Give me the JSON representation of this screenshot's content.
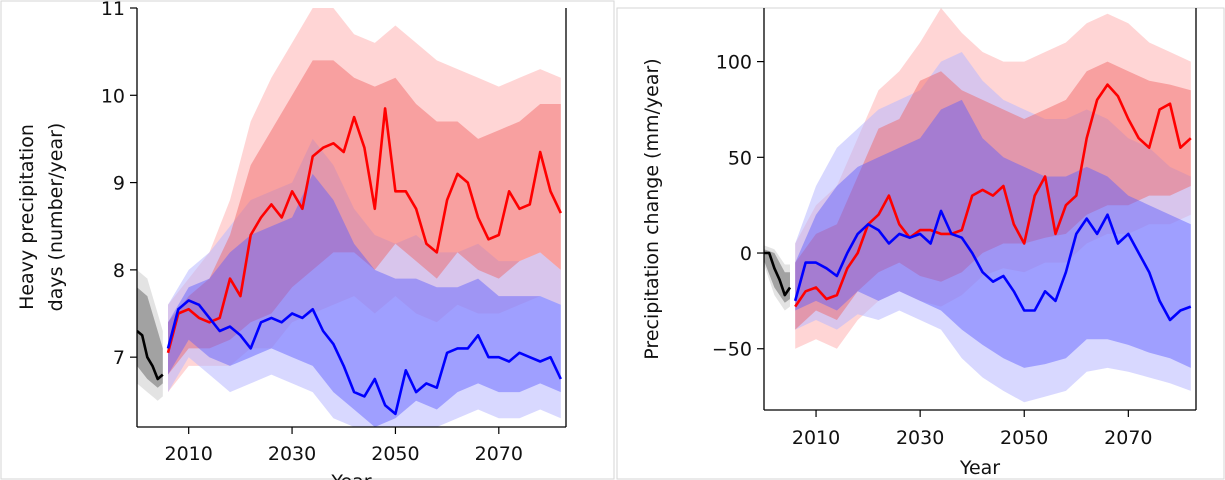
{
  "chart_data": [
    {
      "type": "line",
      "title": "",
      "xlabel": "Year",
      "ylabel": "Heavy precipitation days (number/year)",
      "ylabel_lines": [
        "Heavy precipitation",
        "days (number/year)"
      ],
      "xlim": [
        2000,
        2083
      ],
      "ylim": [
        6.2,
        11.0
      ],
      "xticks": [
        2010,
        2030,
        2050,
        2070
      ],
      "yticks": [
        7,
        8,
        9,
        10,
        11
      ],
      "ytick_labels": [
        "7",
        "8",
        "9",
        "10",
        "11"
      ],
      "grid": false,
      "legend": "none",
      "series": [
        {
          "color": "#000000",
          "x": [
            2000,
            2001,
            2002,
            2003,
            2004,
            2005
          ],
          "values": [
            7.3,
            7.25,
            7.0,
            6.9,
            6.75,
            6.8
          ],
          "band_inner": {
            "x": [
              2000,
              2002,
              2004,
              2005
            ],
            "lower": [
              6.9,
              6.75,
              6.65,
              6.7
            ],
            "upper": [
              7.8,
              7.7,
              7.3,
              7.1
            ]
          },
          "band_outer": {
            "x": [
              2000,
              2002,
              2004,
              2005
            ],
            "lower": [
              6.7,
              6.6,
              6.5,
              6.55
            ],
            "upper": [
              8.0,
              7.9,
              7.5,
              7.3
            ]
          }
        },
        {
          "color": "#ff0000",
          "x": [
            2006,
            2008,
            2010,
            2012,
            2014,
            2016,
            2018,
            2020,
            2022,
            2024,
            2026,
            2028,
            2030,
            2032,
            2034,
            2036,
            2038,
            2040,
            2042,
            2044,
            2046,
            2048,
            2050,
            2052,
            2054,
            2056,
            2058,
            2060,
            2062,
            2064,
            2066,
            2068,
            2070,
            2072,
            2074,
            2076,
            2078,
            2080,
            2082
          ],
          "values": [
            7.05,
            7.5,
            7.55,
            7.45,
            7.4,
            7.45,
            7.9,
            7.7,
            8.4,
            8.6,
            8.75,
            8.6,
            8.9,
            8.7,
            9.3,
            9.4,
            9.45,
            9.35,
            9.75,
            9.4,
            8.7,
            9.85,
            8.9,
            8.9,
            8.7,
            8.3,
            8.2,
            8.8,
            9.1,
            9.0,
            8.6,
            8.35,
            8.4,
            8.9,
            8.7,
            8.75,
            9.35,
            8.9,
            8.65
          ],
          "band_inner": {
            "x": [
              2006,
              2010,
              2014,
              2018,
              2022,
              2026,
              2030,
              2034,
              2038,
              2042,
              2046,
              2050,
              2054,
              2058,
              2062,
              2066,
              2070,
              2074,
              2078,
              2082
            ],
            "lower": [
              6.8,
              7.1,
              7.1,
              7.2,
              7.4,
              7.5,
              7.8,
              8.0,
              8.2,
              8.2,
              8.0,
              8.3,
              8.1,
              7.9,
              8.2,
              8.0,
              7.9,
              8.1,
              8.2,
              8.0
            ],
            "upper": [
              7.4,
              7.7,
              7.9,
              8.4,
              9.2,
              9.6,
              10.0,
              10.4,
              10.4,
              10.2,
              10.1,
              10.2,
              9.9,
              9.7,
              9.7,
              9.5,
              9.6,
              9.7,
              9.9,
              9.9
            ]
          },
          "band_outer": {
            "x": [
              2006,
              2010,
              2014,
              2018,
              2022,
              2026,
              2030,
              2034,
              2038,
              2042,
              2046,
              2050,
              2054,
              2058,
              2062,
              2066,
              2070,
              2074,
              2078,
              2082
            ],
            "lower": [
              6.6,
              6.9,
              6.9,
              6.9,
              7.1,
              7.1,
              7.4,
              7.5,
              7.6,
              7.7,
              7.5,
              7.7,
              7.5,
              7.4,
              7.6,
              7.5,
              7.5,
              7.6,
              7.7,
              7.6
            ],
            "upper": [
              7.6,
              7.9,
              8.2,
              8.8,
              9.7,
              10.2,
              10.6,
              11.0,
              11.0,
              10.7,
              10.6,
              10.8,
              10.6,
              10.4,
              10.3,
              10.2,
              10.1,
              10.2,
              10.3,
              10.2
            ]
          }
        },
        {
          "color": "#0000ff",
          "x": [
            2006,
            2008,
            2010,
            2012,
            2014,
            2016,
            2018,
            2020,
            2022,
            2024,
            2026,
            2028,
            2030,
            2032,
            2034,
            2036,
            2038,
            2040,
            2042,
            2044,
            2046,
            2048,
            2050,
            2052,
            2054,
            2056,
            2058,
            2060,
            2062,
            2064,
            2066,
            2068,
            2070,
            2072,
            2074,
            2076,
            2078,
            2080,
            2082
          ],
          "values": [
            7.1,
            7.55,
            7.65,
            7.6,
            7.45,
            7.3,
            7.35,
            7.25,
            7.1,
            7.4,
            7.45,
            7.4,
            7.5,
            7.45,
            7.55,
            7.3,
            7.15,
            6.9,
            6.6,
            6.55,
            6.75,
            6.45,
            6.35,
            6.85,
            6.6,
            6.7,
            6.65,
            7.05,
            7.1,
            7.1,
            7.25,
            7.0,
            7.0,
            6.95,
            7.05,
            7.0,
            6.95,
            7.0,
            6.75
          ],
          "band_inner": {
            "x": [
              2006,
              2010,
              2014,
              2018,
              2022,
              2026,
              2030,
              2034,
              2038,
              2042,
              2046,
              2050,
              2054,
              2058,
              2062,
              2066,
              2070,
              2074,
              2078,
              2082
            ],
            "lower": [
              6.8,
              7.2,
              7.0,
              6.9,
              7.0,
              7.1,
              7.0,
              6.9,
              6.6,
              6.4,
              6.2,
              6.3,
              6.5,
              6.4,
              6.6,
              6.7,
              6.6,
              6.6,
              6.7,
              6.6
            ],
            "upper": [
              7.4,
              7.8,
              7.9,
              8.2,
              8.4,
              8.5,
              8.6,
              9.1,
              8.8,
              8.3,
              8.0,
              7.9,
              7.9,
              7.8,
              7.8,
              7.9,
              7.7,
              7.7,
              7.7,
              7.6
            ]
          },
          "band_outer": {
            "x": [
              2006,
              2010,
              2014,
              2018,
              2022,
              2026,
              2030,
              2034,
              2038,
              2042,
              2046,
              2050,
              2054,
              2058,
              2062,
              2066,
              2070,
              2074,
              2078,
              2082
            ],
            "lower": [
              6.6,
              7.0,
              6.8,
              6.6,
              6.7,
              6.8,
              6.7,
              6.6,
              6.3,
              6.2,
              6.2,
              6.2,
              6.2,
              6.2,
              6.3,
              6.4,
              6.3,
              6.3,
              6.4,
              6.3
            ],
            "upper": [
              7.6,
              8.0,
              8.2,
              8.5,
              8.8,
              8.9,
              9.0,
              9.5,
              9.2,
              8.7,
              8.4,
              8.3,
              8.4,
              8.2,
              8.2,
              8.3,
              8.1,
              8.1,
              8.2,
              8.0
            ]
          }
        }
      ]
    },
    {
      "type": "line",
      "title": "",
      "xlabel": "Year",
      "ylabel": "Precipitation change (mm/year)",
      "xlim": [
        2000,
        2083
      ],
      "ylim": [
        -82,
        128
      ],
      "xticks": [
        2010,
        2030,
        2050,
        2070
      ],
      "yticks": [
        -50,
        0,
        50,
        100
      ],
      "ytick_labels": [
        "−50",
        "0",
        "50",
        "100"
      ],
      "grid": false,
      "legend": "none",
      "series": [
        {
          "color": "#000000",
          "x": [
            2000,
            2001,
            2002,
            2003,
            2004,
            2005
          ],
          "values": [
            0,
            0,
            -8,
            -14,
            -22,
            -18
          ],
          "band_inner": {
            "x": [
              2000,
              2002,
              2004,
              2005
            ],
            "lower": [
              -4,
              -18,
              -26,
              -24
            ],
            "upper": [
              2,
              0,
              -10,
              -10
            ]
          },
          "band_outer": {
            "x": [
              2000,
              2002,
              2004,
              2005
            ],
            "lower": [
              -6,
              -22,
              -30,
              -28
            ],
            "upper": [
              4,
              2,
              -6,
              -6
            ]
          }
        },
        {
          "color": "#ff0000",
          "x": [
            2006,
            2008,
            2010,
            2012,
            2014,
            2016,
            2018,
            2020,
            2022,
            2024,
            2026,
            2028,
            2030,
            2032,
            2034,
            2036,
            2038,
            2040,
            2042,
            2044,
            2046,
            2048,
            2050,
            2052,
            2054,
            2056,
            2058,
            2060,
            2062,
            2064,
            2066,
            2068,
            2070,
            2072,
            2074,
            2076,
            2078,
            2080,
            2082
          ],
          "values": [
            -28,
            -20,
            -18,
            -24,
            -22,
            -8,
            0,
            15,
            20,
            30,
            15,
            8,
            12,
            12,
            10,
            10,
            12,
            30,
            33,
            30,
            35,
            15,
            5,
            30,
            40,
            10,
            25,
            30,
            60,
            80,
            88,
            82,
            70,
            60,
            55,
            75,
            78,
            55,
            60
          ],
          "band_inner": {
            "x": [
              2006,
              2010,
              2014,
              2018,
              2022,
              2026,
              2030,
              2034,
              2038,
              2042,
              2046,
              2050,
              2054,
              2058,
              2062,
              2066,
              2070,
              2074,
              2078,
              2082
            ],
            "lower": [
              -40,
              -30,
              -35,
              -20,
              -10,
              -5,
              -12,
              -15,
              -10,
              0,
              5,
              5,
              8,
              10,
              20,
              25,
              25,
              30,
              30,
              35
            ],
            "upper": [
              -5,
              10,
              15,
              40,
              65,
              70,
              90,
              95,
              85,
              80,
              75,
              70,
              75,
              80,
              95,
              100,
              95,
              90,
              88,
              85
            ]
          },
          "band_outer": {
            "x": [
              2006,
              2010,
              2014,
              2018,
              2022,
              2026,
              2030,
              2034,
              2038,
              2042,
              2046,
              2050,
              2054,
              2058,
              2062,
              2066,
              2070,
              2074,
              2078,
              2082
            ],
            "lower": [
              -50,
              -45,
              -50,
              -35,
              -25,
              -20,
              -25,
              -28,
              -22,
              -12,
              -8,
              -10,
              -5,
              -5,
              5,
              10,
              10,
              15,
              15,
              20
            ],
            "upper": [
              5,
              25,
              35,
              60,
              85,
              95,
              110,
              128,
              115,
              105,
              100,
              100,
              105,
              110,
              120,
              125,
              120,
              110,
              105,
              100
            ]
          }
        },
        {
          "color": "#0000ff",
          "x": [
            2006,
            2008,
            2010,
            2012,
            2014,
            2016,
            2018,
            2020,
            2022,
            2024,
            2026,
            2028,
            2030,
            2032,
            2034,
            2036,
            2038,
            2040,
            2042,
            2044,
            2046,
            2048,
            2050,
            2052,
            2054,
            2056,
            2058,
            2060,
            2062,
            2064,
            2066,
            2068,
            2070,
            2072,
            2074,
            2076,
            2078,
            2080,
            2082
          ],
          "values": [
            -25,
            -5,
            -5,
            -8,
            -12,
            0,
            10,
            15,
            12,
            5,
            10,
            8,
            10,
            5,
            22,
            10,
            8,
            0,
            -10,
            -15,
            -12,
            -20,
            -30,
            -30,
            -20,
            -25,
            -10,
            10,
            18,
            10,
            20,
            5,
            10,
            0,
            -10,
            -25,
            -35,
            -30,
            -28
          ],
          "band_inner": {
            "x": [
              2006,
              2010,
              2014,
              2018,
              2022,
              2026,
              2030,
              2034,
              2038,
              2042,
              2046,
              2050,
              2054,
              2058,
              2062,
              2066,
              2070,
              2074,
              2078,
              2082
            ],
            "lower": [
              -30,
              -25,
              -30,
              -20,
              -25,
              -20,
              -25,
              -30,
              -40,
              -48,
              -55,
              -60,
              -58,
              -55,
              -45,
              -45,
              -48,
              -52,
              -55,
              -60
            ],
            "upper": [
              -5,
              20,
              35,
              45,
              50,
              55,
              60,
              75,
              80,
              60,
              50,
              45,
              40,
              40,
              45,
              40,
              30,
              25,
              20,
              15
            ]
          },
          "band_outer": {
            "x": [
              2006,
              2010,
              2014,
              2018,
              2022,
              2026,
              2030,
              2034,
              2038,
              2042,
              2046,
              2050,
              2054,
              2058,
              2062,
              2066,
              2070,
              2074,
              2078,
              2082
            ],
            "lower": [
              -40,
              -35,
              -40,
              -32,
              -35,
              -30,
              -35,
              -40,
              -55,
              -65,
              -72,
              -78,
              -75,
              -72,
              -62,
              -60,
              -62,
              -65,
              -68,
              -72
            ],
            "upper": [
              5,
              35,
              55,
              65,
              75,
              80,
              85,
              100,
              105,
              90,
              80,
              75,
              70,
              70,
              75,
              70,
              60,
              55,
              45,
              40
            ]
          }
        }
      ]
    }
  ]
}
